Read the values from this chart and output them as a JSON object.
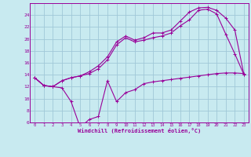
{
  "xlabel": "Windchill (Refroidissement éolien,°C)",
  "bg_color": "#c8eaf0",
  "grid_color": "#a0c8d8",
  "line_color": "#990099",
  "xlim": [
    -0.5,
    23.5
  ],
  "ylim": [
    6,
    26
  ],
  "yticks": [
    6,
    8,
    10,
    12,
    14,
    16,
    18,
    20,
    22,
    24
  ],
  "xticks": [
    0,
    1,
    2,
    3,
    4,
    5,
    6,
    7,
    8,
    9,
    10,
    11,
    12,
    13,
    14,
    15,
    16,
    17,
    18,
    19,
    20,
    21,
    22,
    23
  ],
  "line1_x": [
    0,
    1,
    2,
    3,
    4,
    5,
    6,
    7,
    8,
    9,
    10,
    11,
    12,
    13,
    14,
    15,
    16,
    17,
    18,
    19,
    20,
    21,
    22,
    23
  ],
  "line1_y": [
    13.5,
    12.2,
    12.0,
    11.8,
    9.5,
    5.2,
    6.5,
    7.0,
    13.0,
    9.5,
    11.0,
    11.5,
    12.5,
    12.8,
    13.0,
    13.2,
    13.4,
    13.6,
    13.8,
    14.0,
    14.2,
    14.3,
    14.3,
    14.2
  ],
  "line2_x": [
    0,
    1,
    2,
    3,
    4,
    5,
    6,
    7,
    8,
    9,
    10,
    11,
    12,
    13,
    14,
    15,
    16,
    17,
    18,
    19,
    20,
    21,
    22,
    23
  ],
  "line2_y": [
    13.5,
    12.2,
    12.0,
    13.0,
    13.5,
    13.8,
    14.2,
    15.0,
    16.5,
    19.0,
    20.2,
    19.5,
    19.8,
    20.2,
    20.5,
    21.0,
    22.2,
    23.2,
    24.8,
    25.0,
    24.2,
    20.8,
    17.5,
    14.0
  ],
  "line3_x": [
    0,
    1,
    2,
    3,
    4,
    5,
    6,
    7,
    8,
    9,
    10,
    11,
    12,
    13,
    14,
    15,
    16,
    17,
    18,
    19,
    20,
    21,
    22,
    23
  ],
  "line3_y": [
    13.5,
    12.2,
    12.0,
    13.0,
    13.5,
    13.8,
    14.5,
    15.5,
    17.0,
    19.5,
    20.5,
    19.8,
    20.2,
    21.0,
    21.0,
    21.5,
    23.0,
    24.5,
    25.2,
    25.3,
    24.8,
    23.5,
    21.5,
    14.0
  ]
}
